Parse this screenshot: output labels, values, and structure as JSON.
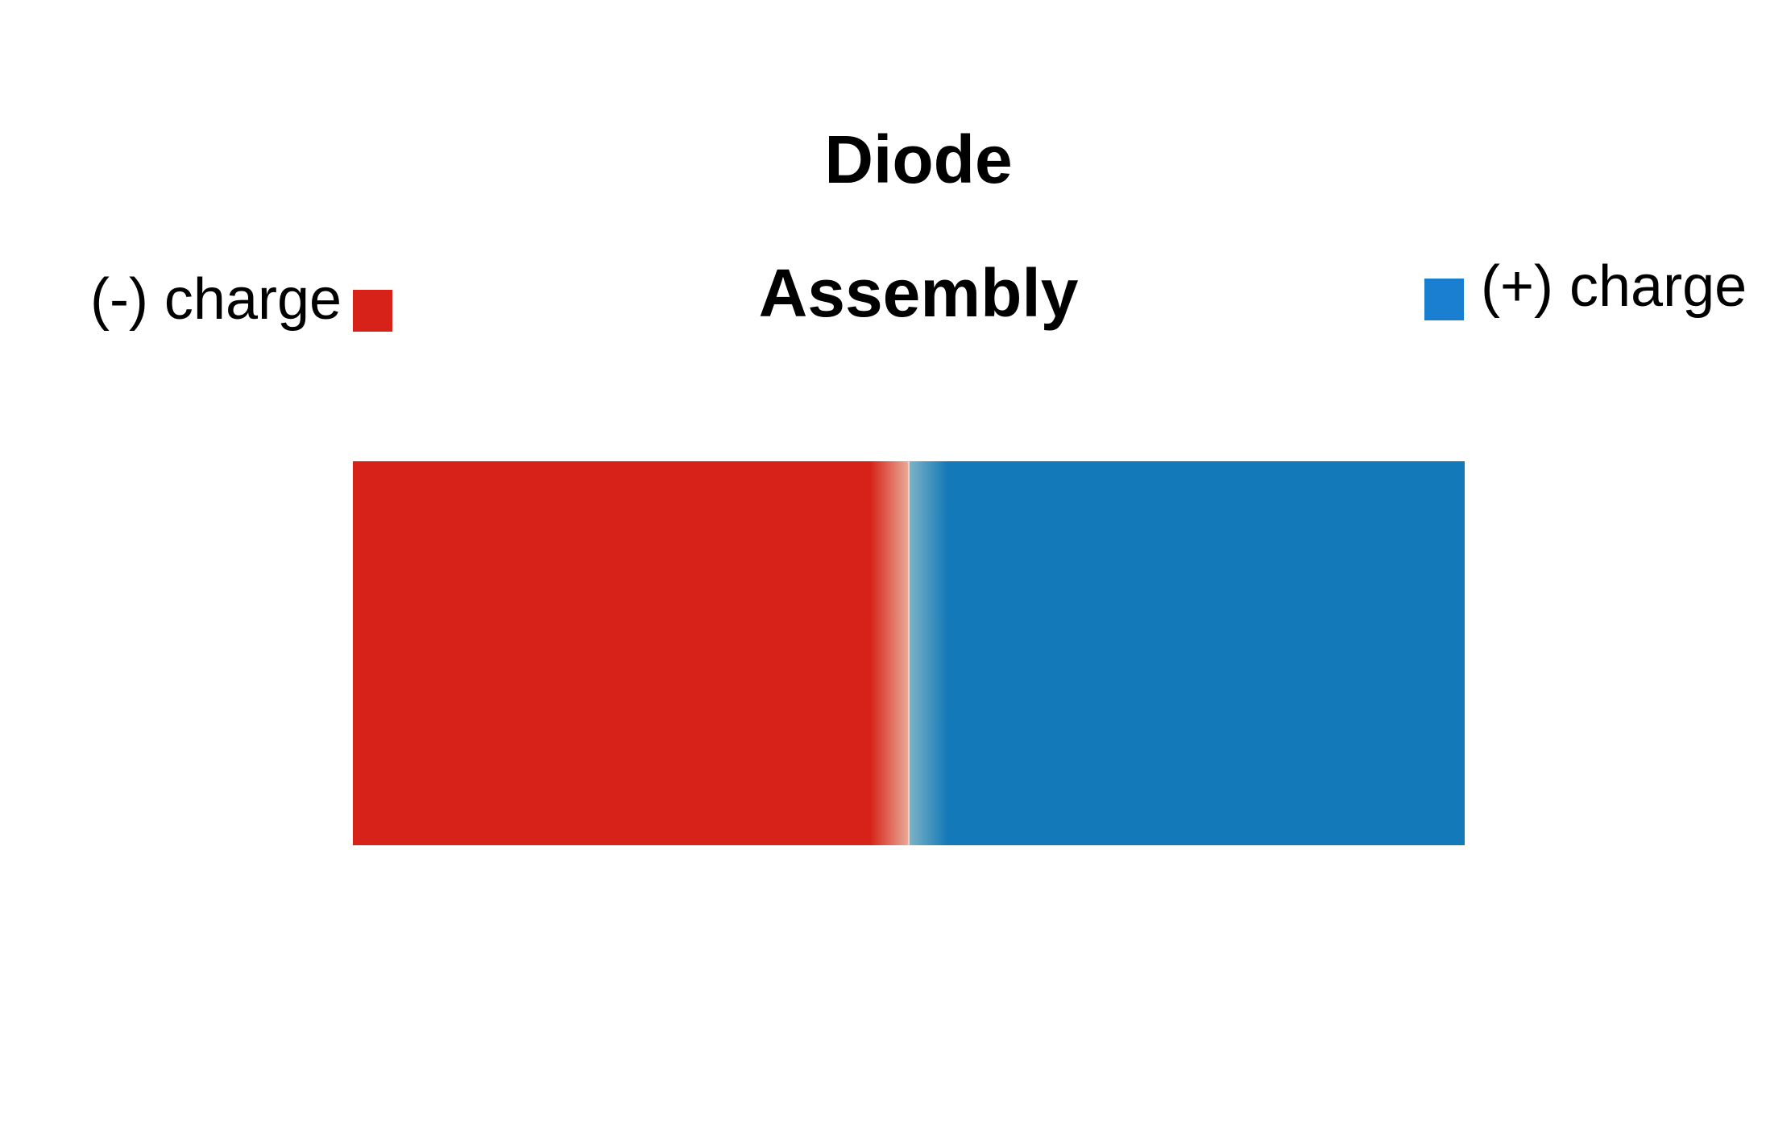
{
  "title": "Diode",
  "subtitle": "Assembly",
  "legend": {
    "negative": {
      "label": "(-) charge",
      "color": "#d62218"
    },
    "positive": {
      "label": "(+) charge",
      "color": "#1a7fd1"
    }
  },
  "regions": {
    "negative_color": "#d62218",
    "positive_color": "#1479b8",
    "negative_fade": "#e9ac99",
    "positive_fade": "#7db4c6"
  }
}
